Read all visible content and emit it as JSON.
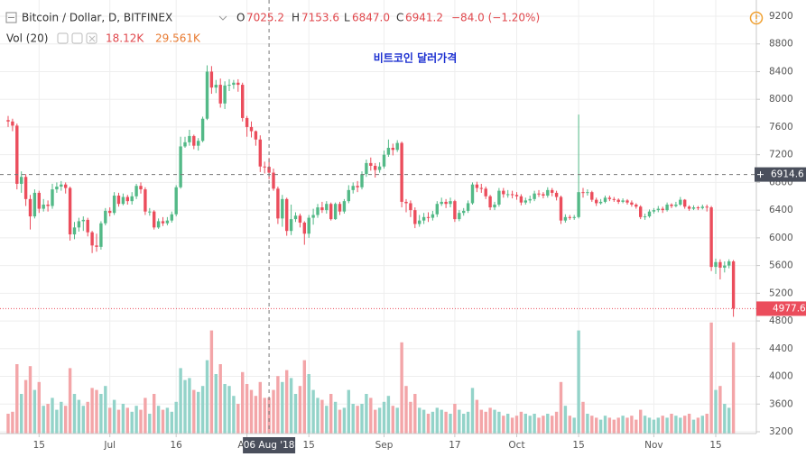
{
  "header": {
    "symbol": "Bitcoin / Dollar, D, BITFINEX",
    "ohlc": [
      {
        "key": "O",
        "value": "7025.2"
      },
      {
        "key": "H",
        "value": "7153.6"
      },
      {
        "key": "L",
        "value": "6847.0"
      },
      {
        "key": "C",
        "value": "6941.2"
      }
    ],
    "change": "−84.0 (−1.20%)",
    "volume_title": "Vol (20)",
    "volume_value": "18.12K",
    "volume_ma": "29.561K"
  },
  "chart_data": {
    "type": "candlestick",
    "title": "비트코인 달러가격",
    "x": [
      "2018-06-08",
      "2018-06-09",
      "2018-06-10",
      "2018-06-11",
      "2018-06-12",
      "2018-06-13",
      "2018-06-14",
      "2018-06-15",
      "2018-06-16",
      "2018-06-17",
      "2018-06-18",
      "2018-06-19",
      "2018-06-20",
      "2018-06-21",
      "2018-06-22",
      "2018-06-23",
      "2018-06-24",
      "2018-06-25",
      "2018-06-26",
      "2018-06-27",
      "2018-06-28",
      "2018-06-29",
      "2018-06-30",
      "2018-07-01",
      "2018-07-02",
      "2018-07-03",
      "2018-07-04",
      "2018-07-05",
      "2018-07-06",
      "2018-07-07",
      "2018-07-08",
      "2018-07-09",
      "2018-07-10",
      "2018-07-11",
      "2018-07-12",
      "2018-07-13",
      "2018-07-14",
      "2018-07-15",
      "2018-07-16",
      "2018-07-17",
      "2018-07-18",
      "2018-07-19",
      "2018-07-20",
      "2018-07-21",
      "2018-07-22",
      "2018-07-23",
      "2018-07-24",
      "2018-07-25",
      "2018-07-26",
      "2018-07-27",
      "2018-07-28",
      "2018-07-29",
      "2018-07-30",
      "2018-07-31",
      "2018-08-01",
      "2018-08-02",
      "2018-08-03",
      "2018-08-04",
      "2018-08-05",
      "2018-08-06",
      "2018-08-07",
      "2018-08-08",
      "2018-08-09",
      "2018-08-10",
      "2018-08-11",
      "2018-08-12",
      "2018-08-13",
      "2018-08-14",
      "2018-08-15",
      "2018-08-16",
      "2018-08-17",
      "2018-08-18",
      "2018-08-19",
      "2018-08-20",
      "2018-08-21",
      "2018-08-22",
      "2018-08-23",
      "2018-08-24",
      "2018-08-25",
      "2018-08-26",
      "2018-08-27",
      "2018-08-28",
      "2018-08-29",
      "2018-08-30",
      "2018-08-31",
      "2018-09-01",
      "2018-09-02",
      "2018-09-03",
      "2018-09-04",
      "2018-09-05",
      "2018-09-06",
      "2018-09-07",
      "2018-09-08",
      "2018-09-09",
      "2018-09-10",
      "2018-09-11",
      "2018-09-12",
      "2018-09-13",
      "2018-09-14",
      "2018-09-15",
      "2018-09-16",
      "2018-09-17",
      "2018-09-18",
      "2018-09-19",
      "2018-09-20",
      "2018-09-21",
      "2018-09-22",
      "2018-09-23",
      "2018-09-24",
      "2018-09-25",
      "2018-09-26",
      "2018-09-27",
      "2018-09-28",
      "2018-09-29",
      "2018-09-30",
      "2018-10-01",
      "2018-10-02",
      "2018-10-03",
      "2018-10-04",
      "2018-10-05",
      "2018-10-06",
      "2018-10-07",
      "2018-10-08",
      "2018-10-09",
      "2018-10-10",
      "2018-10-11",
      "2018-10-12",
      "2018-10-13",
      "2018-10-14",
      "2018-10-15",
      "2018-10-16",
      "2018-10-17",
      "2018-10-18",
      "2018-10-19",
      "2018-10-20",
      "2018-10-21",
      "2018-10-22",
      "2018-10-23",
      "2018-10-24",
      "2018-10-25",
      "2018-10-26",
      "2018-10-27",
      "2018-10-28",
      "2018-10-29",
      "2018-10-30",
      "2018-10-31",
      "2018-11-01",
      "2018-11-02",
      "2018-11-03",
      "2018-11-04",
      "2018-11-05",
      "2018-11-06",
      "2018-11-07",
      "2018-11-08",
      "2018-11-09",
      "2018-11-10",
      "2018-11-11",
      "2018-11-12",
      "2018-11-13",
      "2018-11-14",
      "2018-11-15",
      "2018-11-16",
      "2018-11-17",
      "2018-11-18",
      "2018-11-19"
    ],
    "open": [
      7700,
      7680,
      7620,
      6780,
      6880,
      6560,
      6310,
      6650,
      6420,
      6480,
      6460,
      6700,
      6740,
      6770,
      6720,
      6050,
      6150,
      6240,
      6260,
      6080,
      5890,
      5870,
      6210,
      6390,
      6360,
      6610,
      6490,
      6590,
      6530,
      6600,
      6750,
      6700,
      6380,
      6380,
      6150,
      6240,
      6210,
      6250,
      6340,
      6730,
      7320,
      7380,
      7470,
      7330,
      7400,
      7720,
      8400,
      8170,
      8210,
      7940,
      8200,
      8210,
      8240,
      8210,
      7730,
      7600,
      7540,
      7420,
      7030,
      7025.2,
      6941.2,
      6710,
      6280,
      6560,
      6100,
      6270,
      6320,
      6220,
      6060,
      6290,
      6330,
      6440,
      6400,
      6490,
      6270,
      6490,
      6380,
      6530,
      6690,
      6750,
      6730,
      6920,
      7080,
      7040,
      6980,
      7030,
      7200,
      7300,
      7270,
      7370,
      6520,
      6500,
      6400,
      6200,
      6250,
      6300,
      6290,
      6340,
      6490,
      6520,
      6490,
      6530,
      6270,
      6360,
      6390,
      6500,
      6770,
      6720,
      6710,
      6600,
      6440,
      6480,
      6680,
      6630,
      6630,
      6620,
      6600,
      6510,
      6540,
      6560,
      6640,
      6630,
      6610,
      6690,
      6650,
      6590,
      6250,
      6300,
      6290,
      6300,
      6660,
      6650,
      6660,
      6550,
      6500,
      6520,
      6580,
      6560,
      6550,
      6520,
      6540,
      6510,
      6480,
      6450,
      6300,
      6310,
      6380,
      6400,
      6420,
      6400,
      6480,
      6460,
      6480,
      6550,
      6450,
      6420,
      6440,
      6430,
      6450,
      6440,
      5580,
      5650,
      5570,
      5600,
      5660
    ],
    "high": [
      7760,
      7720,
      7650,
      6960,
      6920,
      6620,
      6700,
      6680,
      6560,
      6540,
      6780,
      6800,
      6820,
      6800,
      6740,
      6230,
      6290,
      6310,
      6290,
      6100,
      6060,
      6240,
      6430,
      6440,
      6660,
      6650,
      6640,
      6620,
      6660,
      6780,
      6800,
      6730,
      6430,
      6400,
      6280,
      6300,
      6300,
      6380,
      6760,
      7460,
      7460,
      7560,
      7490,
      7440,
      7750,
      8490,
      8480,
      8280,
      8300,
      8260,
      8290,
      8280,
      8290,
      8240,
      7760,
      7680,
      7550,
      7480,
      7100,
      7153.6,
      7000,
      6740,
      6620,
      6580,
      6480,
      6370,
      6350,
      6240,
      6330,
      6420,
      6490,
      6520,
      6530,
      6510,
      6510,
      6520,
      6560,
      6760,
      6800,
      6820,
      6960,
      7130,
      7160,
      7080,
      7090,
      7260,
      7420,
      7360,
      7410,
      7390,
      6560,
      6540,
      6440,
      6330,
      6360,
      6370,
      6390,
      6530,
      6580,
      6560,
      6580,
      6550,
      6400,
      6430,
      6540,
      6800,
      6810,
      6780,
      6740,
      6620,
      6520,
      6720,
      6720,
      6690,
      6680,
      6660,
      6630,
      6580,
      6610,
      6680,
      6690,
      6660,
      6730,
      6720,
      6680,
      6610,
      6340,
      6330,
      6330,
      7780,
      6720,
      6700,
      6680,
      6580,
      6560,
      6610,
      6610,
      6590,
      6570,
      6570,
      6560,
      6540,
      6500,
      6470,
      6350,
      6410,
      6430,
      6460,
      6450,
      6510,
      6500,
      6520,
      6590,
      6560,
      6470,
      6470,
      6460,
      6480,
      6480,
      6460,
      5700,
      5690,
      5660,
      5690,
      5680
    ],
    "low": [
      7600,
      7540,
      6700,
      6650,
      6460,
      6120,
      6280,
      6360,
      6380,
      6380,
      6420,
      6650,
      6680,
      6640,
      5960,
      5980,
      6090,
      6100,
      6020,
      5780,
      5800,
      5830,
      6180,
      6310,
      6330,
      6450,
      6470,
      6480,
      6480,
      6560,
      6640,
      6330,
      6320,
      6120,
      6130,
      6170,
      6180,
      6220,
      6310,
      6710,
      7300,
      7330,
      7280,
      7260,
      7380,
      7700,
      8080,
      8090,
      7880,
      7860,
      8120,
      8150,
      8110,
      7680,
      7460,
      7450,
      7330,
      6950,
      6930,
      6847.0,
      6680,
      6200,
      6160,
      6030,
      6040,
      6230,
      6150,
      5900,
      6000,
      6190,
      6290,
      6360,
      6350,
      6250,
      6260,
      6330,
      6350,
      6500,
      6640,
      6660,
      6700,
      6880,
      6970,
      6870,
      6940,
      7000,
      7170,
      7190,
      7240,
      6440,
      6370,
      6300,
      6140,
      6160,
      6200,
      6230,
      6250,
      6300,
      6460,
      6430,
      6440,
      6230,
      6240,
      6320,
      6360,
      6480,
      6660,
      6650,
      6560,
      6400,
      6400,
      6450,
      6580,
      6580,
      6570,
      6550,
      6470,
      6480,
      6500,
      6530,
      6590,
      6570,
      6580,
      6600,
      6540,
      6200,
      6220,
      6260,
      6260,
      6280,
      6580,
      6610,
      6520,
      6460,
      6480,
      6500,
      6530,
      6520,
      6490,
      6500,
      6480,
      6450,
      6420,
      6270,
      6260,
      6290,
      6350,
      6370,
      6360,
      6380,
      6430,
      6440,
      6460,
      6420,
      6390,
      6400,
      6400,
      6410,
      6380,
      5520,
      5480,
      5400,
      5500,
      5560,
      4860
    ],
    "close": [
      7680,
      7620,
      6780,
      6880,
      6560,
      6310,
      6650,
      6420,
      6480,
      6460,
      6700,
      6740,
      6770,
      6720,
      6050,
      6150,
      6240,
      6260,
      6080,
      5890,
      5870,
      6210,
      6390,
      6360,
      6610,
      6490,
      6590,
      6530,
      6600,
      6750,
      6700,
      6380,
      6380,
      6150,
      6240,
      6210,
      6250,
      6340,
      6730,
      7320,
      7380,
      7470,
      7330,
      7400,
      7720,
      8400,
      8170,
      8210,
      7940,
      8200,
      8210,
      8240,
      8210,
      7730,
      7600,
      7540,
      7420,
      7030,
      7025.2,
      6941.2,
      6710,
      6280,
      6560,
      6100,
      6270,
      6320,
      6220,
      6060,
      6290,
      6330,
      6440,
      6400,
      6490,
      6270,
      6490,
      6380,
      6530,
      6690,
      6750,
      6730,
      6920,
      7080,
      7040,
      6980,
      7030,
      7200,
      7300,
      7270,
      7370,
      6520,
      6500,
      6400,
      6200,
      6250,
      6300,
      6290,
      6340,
      6490,
      6520,
      6490,
      6530,
      6270,
      6360,
      6390,
      6500,
      6770,
      6720,
      6710,
      6600,
      6440,
      6480,
      6680,
      6630,
      6630,
      6620,
      6600,
      6510,
      6540,
      6560,
      6640,
      6630,
      6610,
      6690,
      6650,
      6590,
      6250,
      6300,
      6290,
      6300,
      6660,
      6650,
      6660,
      6550,
      6500,
      6520,
      6580,
      6560,
      6550,
      6520,
      6540,
      6510,
      6480,
      6450,
      6300,
      6310,
      6380,
      6400,
      6420,
      6400,
      6480,
      6460,
      6480,
      6550,
      6450,
      6420,
      6440,
      6430,
      6450,
      6440,
      5580,
      5650,
      5570,
      5600,
      5660,
      4977.6
    ],
    "volume": [
      10,
      11,
      35,
      20,
      27,
      34,
      22,
      26,
      14,
      15,
      18,
      12,
      16,
      14,
      33,
      20,
      17,
      14,
      16,
      23,
      22,
      20,
      24,
      13,
      17,
      12,
      15,
      13,
      11,
      14,
      12,
      18,
      10,
      20,
      14,
      12,
      13,
      11,
      16,
      33,
      27,
      28,
      22,
      21,
      24,
      37,
      52,
      30,
      35,
      25,
      24,
      19,
      15,
      31,
      25,
      22,
      19,
      26,
      18,
      18.12,
      22,
      29,
      26,
      32,
      28,
      20,
      24,
      37,
      30,
      22,
      18,
      17,
      14,
      20,
      16,
      12,
      13,
      22,
      15,
      14,
      15,
      20,
      18,
      12,
      13,
      16,
      19,
      14,
      13,
      46,
      24,
      16,
      20,
      13,
      12,
      10,
      11,
      13,
      12,
      11,
      10,
      15,
      12,
      10,
      11,
      23,
      17,
      12,
      11,
      13,
      12,
      11,
      9,
      10,
      8,
      9,
      11,
      10,
      9,
      10,
      8,
      9,
      10,
      9,
      11,
      26,
      14,
      9,
      8,
      52,
      16,
      10,
      9,
      8,
      7,
      9,
      8,
      7,
      8,
      9,
      8,
      9,
      7,
      12,
      9,
      8,
      7,
      8,
      9,
      8,
      10,
      9,
      8,
      9,
      10,
      7,
      8,
      9,
      10,
      56,
      22,
      24,
      15,
      13,
      46
    ],
    "volume_ylim": [
      0,
      60
    ],
    "up_color": "#53b987",
    "down_color": "#eb4d5c",
    "volume_up_color": "#93d3c9",
    "volume_down_color": "#f3a5a8",
    "ylim": [
      3200,
      9200
    ],
    "yticks": [
      3200,
      3600,
      4000,
      4400,
      4800,
      5200,
      5600,
      6000,
      6400,
      6800,
      7200,
      7600,
      8000,
      8400,
      8800,
      9200
    ],
    "xticks": [
      {
        "value": "2018-06-15",
        "label": "15"
      },
      {
        "value": "2018-07-01",
        "label": "Jul"
      },
      {
        "value": "2018-07-16",
        "label": "16"
      },
      {
        "value": "2018-08-01",
        "label": "Aug"
      },
      {
        "value": "2018-08-15",
        "label": "15"
      },
      {
        "value": "2018-09-01",
        "label": "Sep"
      },
      {
        "value": "2018-09-17",
        "label": "17"
      },
      {
        "value": "2018-10-01",
        "label": "Oct"
      },
      {
        "value": "2018-10-15",
        "label": "15"
      },
      {
        "value": "2018-11-01",
        "label": "Nov"
      },
      {
        "value": "2018-11-15",
        "label": "15"
      }
    ],
    "grid": true,
    "crosshair": {
      "x": "2018-08-06",
      "x_label": "06 Aug '18",
      "y": 6914.6
    }
  }
}
